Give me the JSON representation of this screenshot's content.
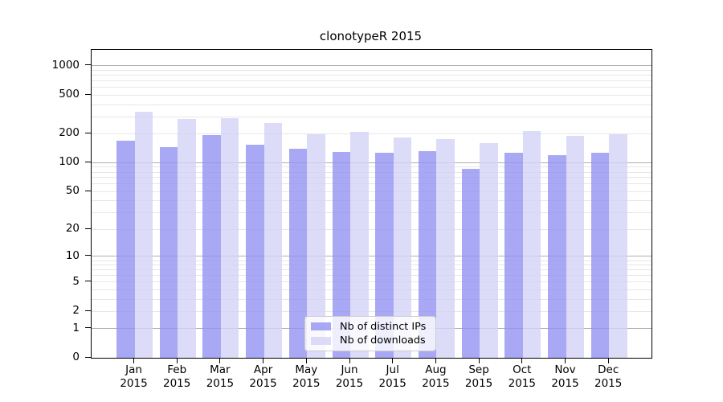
{
  "title": "clonotypeR 2015",
  "chart_data": {
    "type": "bar",
    "title": "clonotypeR 2015",
    "categories": [
      "Jan",
      "Feb",
      "Mar",
      "Apr",
      "May",
      "Jun",
      "Jul",
      "Aug",
      "Sep",
      "Oct",
      "Nov",
      "Dec"
    ],
    "year": "2015",
    "series": [
      {
        "name": "Nb of distinct IPs",
        "color": "#9292f2",
        "values": [
          168,
          146,
          193,
          154,
          139,
          130,
          126,
          133,
          86,
          128,
          119,
          126
        ]
      },
      {
        "name": "Nb of downloads",
        "color": "#d3d3f6",
        "values": [
          335,
          284,
          292,
          260,
          196,
          210,
          182,
          177,
          160,
          213,
          190,
          196
        ]
      }
    ],
    "fill_alpha": 0.8,
    "yscale": "log1p",
    "ylim": [
      0,
      1460
    ],
    "yticks": [
      0,
      1,
      2,
      5,
      10,
      20,
      50,
      100,
      200,
      500,
      1000
    ],
    "grid": {
      "major": [
        1,
        10,
        100,
        1000
      ],
      "minor": [
        2,
        3,
        4,
        5,
        6,
        7,
        8,
        9,
        20,
        30,
        40,
        50,
        60,
        70,
        80,
        90,
        200,
        300,
        400,
        500,
        600,
        700,
        800,
        900
      ],
      "major_color": "#b0b0b0",
      "minor_color": "#e7e7e7"
    },
    "legend_position": "lower center"
  }
}
